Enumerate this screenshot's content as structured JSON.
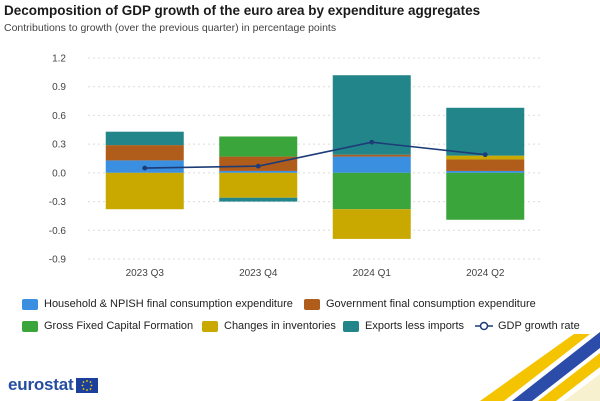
{
  "title": "Decomposition of GDP growth of the euro area by expenditure aggregates",
  "subtitle": "Contributions to growth (over the previous quarter) in percentage points",
  "logo_text": "eurostat",
  "colors": {
    "household": "#3b8fe0",
    "government": "#b05c1a",
    "gfcf": "#3aa53a",
    "inventories": "#c9a800",
    "exports": "#21858a",
    "gdp_line": "#1d3c78",
    "grid": "#dcdcdc"
  },
  "legend": [
    {
      "label": "Household & NPISH final consumption expenditure",
      "color_key": "household",
      "kind": "bar"
    },
    {
      "label": "Government final consumption expenditure",
      "color_key": "government",
      "kind": "bar"
    },
    {
      "label": "Gross Fixed Capital Formation",
      "color_key": "gfcf",
      "kind": "bar"
    },
    {
      "label": "Changes in inventories",
      "color_key": "inventories",
      "kind": "bar"
    },
    {
      "label": "Exports less imports",
      "color_key": "exports",
      "kind": "bar"
    },
    {
      "label": "GDP growth rate",
      "color_key": "gdp_line",
      "kind": "line"
    }
  ],
  "chart_data": {
    "type": "bar",
    "stacked": true,
    "categories": [
      "2023 Q3",
      "2023 Q4",
      "2024 Q1",
      "2024 Q2"
    ],
    "ylim": [
      -0.9,
      1.2
    ],
    "yticks": [
      "1.2",
      "0.9",
      "0.6",
      "0.3",
      "0.0",
      "-0.3",
      "-0.6",
      "-0.9"
    ],
    "ytick_values": [
      1.2,
      0.9,
      0.6,
      0.3,
      0.0,
      -0.3,
      -0.6,
      -0.9
    ],
    "grid": true,
    "legend_position": "bottom",
    "series": [
      {
        "name": "Household & NPISH final consumption expenditure",
        "color_key": "household",
        "values": [
          0.13,
          0.02,
          0.17,
          0.02
        ]
      },
      {
        "name": "Government final consumption expenditure",
        "color_key": "government",
        "values": [
          0.16,
          0.15,
          0.02,
          0.12
        ]
      },
      {
        "name": "Gross Fixed Capital Formation",
        "color_key": "gfcf",
        "values": [
          0.0,
          0.21,
          -0.38,
          -0.49
        ]
      },
      {
        "name": "Changes in inventories",
        "color_key": "inventories",
        "values": [
          -0.38,
          -0.26,
          -0.31,
          0.04
        ]
      },
      {
        "name": "Exports less imports",
        "color_key": "exports",
        "values": [
          0.14,
          -0.04,
          0.83,
          0.5
        ]
      }
    ],
    "line_series": {
      "name": "GDP growth rate",
      "color_key": "gdp_line",
      "values": [
        0.05,
        0.07,
        0.32,
        0.19
      ]
    }
  }
}
